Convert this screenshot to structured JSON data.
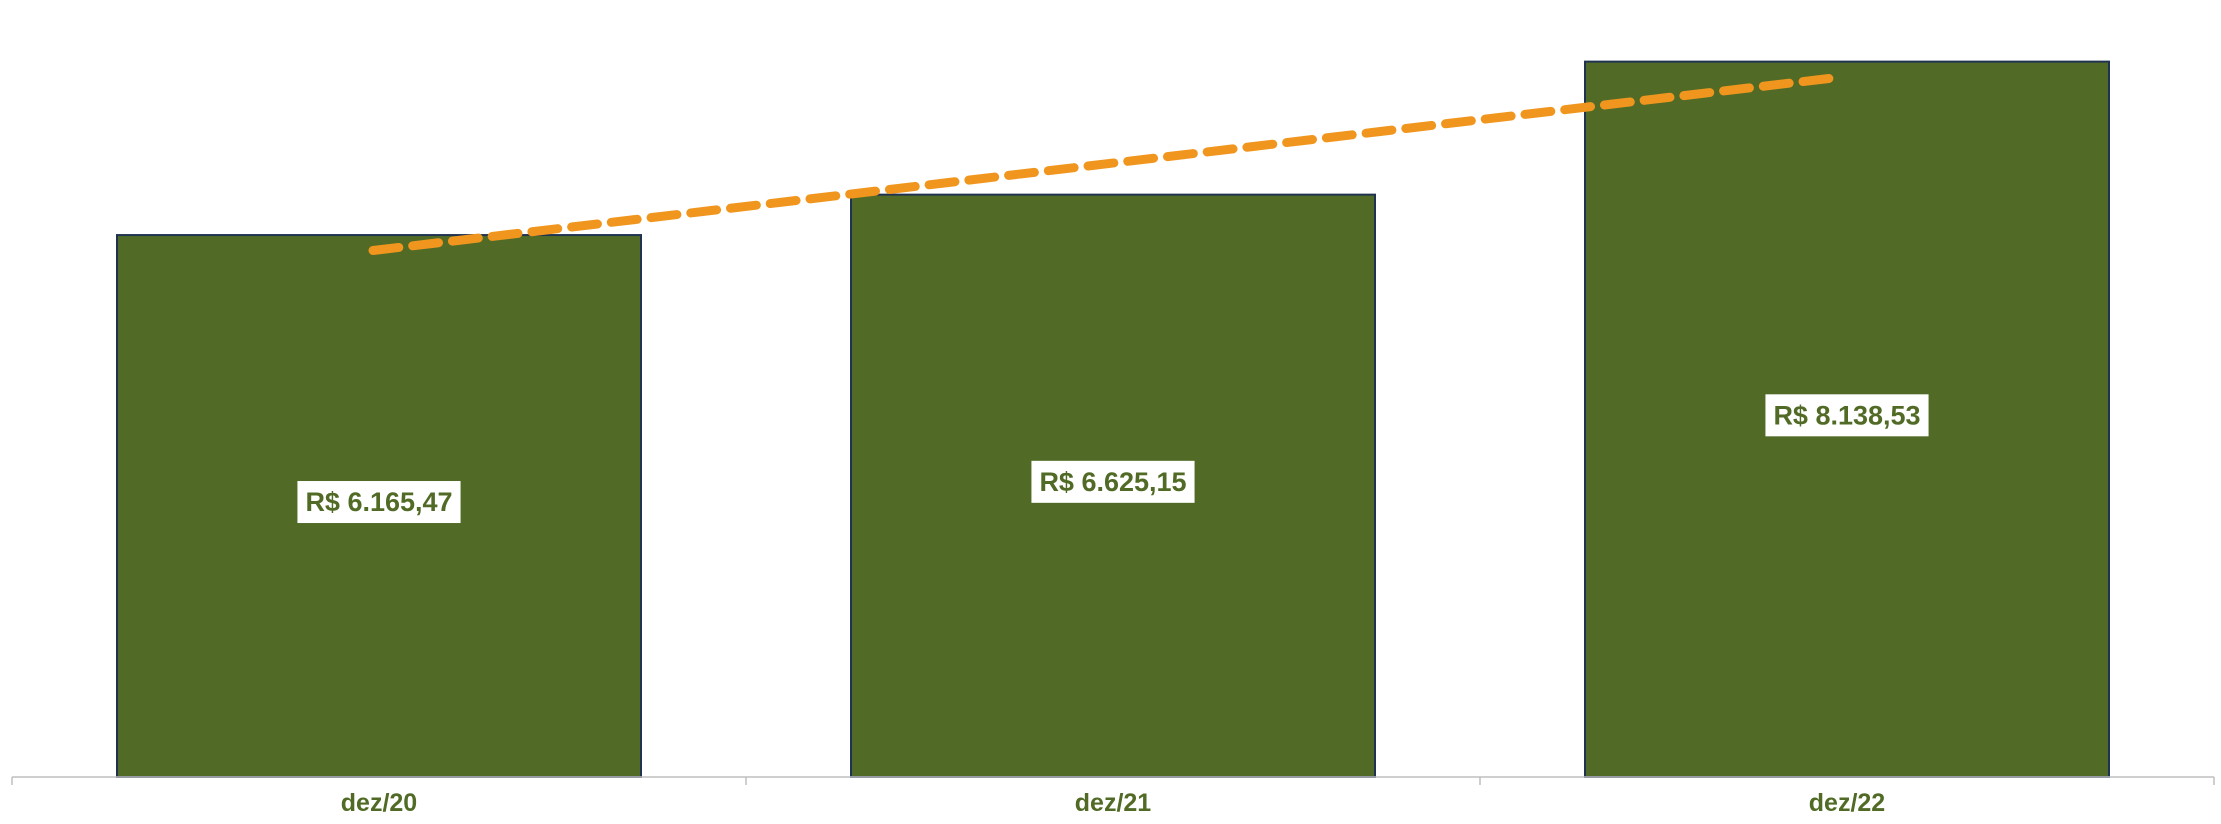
{
  "chart_data": {
    "type": "bar",
    "categories": [
      "dez/20",
      "dez/21",
      "dez/22"
    ],
    "values": [
      6165.47,
      6625.15,
      8138.53
    ],
    "data_labels": [
      "R$ 6.165,47",
      "R$ 6.625,15",
      "R$ 8.138,53"
    ],
    "trendline": {
      "type": "linear",
      "style": "dashed",
      "color": "#F0961E"
    },
    "title": "",
    "xlabel": "",
    "ylabel": "",
    "ylim": [
      0,
      8800
    ],
    "grid": false,
    "legend": "none",
    "colors": {
      "bar_fill": "#516B26",
      "bar_border": "#1F3350",
      "label_text": "#516B26",
      "label_box": "#FFFFFF",
      "axis": "#BFBFBF",
      "trendline": "#F0961E"
    }
  }
}
